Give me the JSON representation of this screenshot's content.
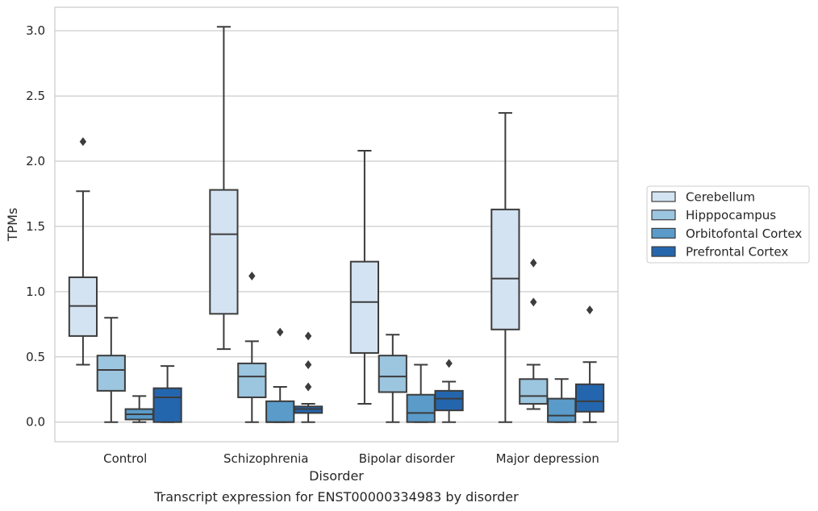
{
  "chart_data": {
    "type": "box",
    "caption": "Transcript expression for ENST00000334983 by disorder",
    "xlabel": "Disorder",
    "ylabel": "TPMs",
    "ylim": [
      -0.15,
      3.18
    ],
    "yticks": [
      0.0,
      0.5,
      1.0,
      1.5,
      2.0,
      2.5,
      3.0
    ],
    "ytick_labels": [
      "0.0",
      "0.5",
      "1.0",
      "1.5",
      "2.0",
      "2.5",
      "3.0"
    ],
    "grid": "horizontal",
    "legend_position": "right",
    "categories": [
      "Control",
      "Schizophrenia",
      "Bipolar disorder",
      "Major depression"
    ],
    "series": [
      {
        "name": "Cerebellum",
        "color": "#d4e3f2",
        "boxes": [
          {
            "whisker_low": 0.44,
            "q1": 0.66,
            "median": 0.89,
            "q3": 1.11,
            "whisker_high": 1.77,
            "outliers": [
              2.15
            ]
          },
          {
            "whisker_low": 0.56,
            "q1": 0.83,
            "median": 1.44,
            "q3": 1.78,
            "whisker_high": 3.03,
            "outliers": []
          },
          {
            "whisker_low": 0.14,
            "q1": 0.53,
            "median": 0.92,
            "q3": 1.23,
            "whisker_high": 2.08,
            "outliers": []
          },
          {
            "whisker_low": 0.0,
            "q1": 0.71,
            "median": 1.1,
            "q3": 1.63,
            "whisker_high": 2.37,
            "outliers": []
          }
        ]
      },
      {
        "name": "Hipppocampus",
        "color": "#9cc5df",
        "boxes": [
          {
            "whisker_low": 0.0,
            "q1": 0.24,
            "median": 0.4,
            "q3": 0.51,
            "whisker_high": 0.8,
            "outliers": []
          },
          {
            "whisker_low": 0.0,
            "q1": 0.19,
            "median": 0.35,
            "q3": 0.45,
            "whisker_high": 0.62,
            "outliers": [
              1.12
            ]
          },
          {
            "whisker_low": 0.0,
            "q1": 0.23,
            "median": 0.35,
            "q3": 0.51,
            "whisker_high": 0.67,
            "outliers": []
          },
          {
            "whisker_low": 0.1,
            "q1": 0.14,
            "median": 0.2,
            "q3": 0.33,
            "whisker_high": 0.44,
            "outliers": [
              0.92,
              1.22
            ]
          }
        ]
      },
      {
        "name": "Orbitofontal Cortex",
        "color": "#5a9bc9",
        "boxes": [
          {
            "whisker_low": 0.0,
            "q1": 0.02,
            "median": 0.06,
            "q3": 0.1,
            "whisker_high": 0.2,
            "outliers": []
          },
          {
            "whisker_low": 0.0,
            "q1": 0.0,
            "median": 0.0,
            "q3": 0.16,
            "whisker_high": 0.27,
            "outliers": [
              0.69
            ]
          },
          {
            "whisker_low": 0.0,
            "q1": 0.0,
            "median": 0.07,
            "q3": 0.21,
            "whisker_high": 0.44,
            "outliers": []
          },
          {
            "whisker_low": 0.0,
            "q1": 0.0,
            "median": 0.05,
            "q3": 0.18,
            "whisker_high": 0.33,
            "outliers": []
          }
        ]
      },
      {
        "name": "Prefrontal Cortex",
        "color": "#2466ae",
        "boxes": [
          {
            "whisker_low": 0.0,
            "q1": 0.0,
            "median": 0.19,
            "q3": 0.26,
            "whisker_high": 0.43,
            "outliers": []
          },
          {
            "whisker_low": 0.0,
            "q1": 0.07,
            "median": 0.1,
            "q3": 0.12,
            "whisker_high": 0.14,
            "outliers": [
              0.27,
              0.44,
              0.66
            ]
          },
          {
            "whisker_low": 0.0,
            "q1": 0.09,
            "median": 0.18,
            "q3": 0.24,
            "whisker_high": 0.31,
            "outliers": [
              0.45
            ]
          },
          {
            "whisker_low": 0.0,
            "q1": 0.08,
            "median": 0.16,
            "q3": 0.29,
            "whisker_high": 0.46,
            "outliers": [
              0.86
            ]
          }
        ]
      }
    ]
  }
}
